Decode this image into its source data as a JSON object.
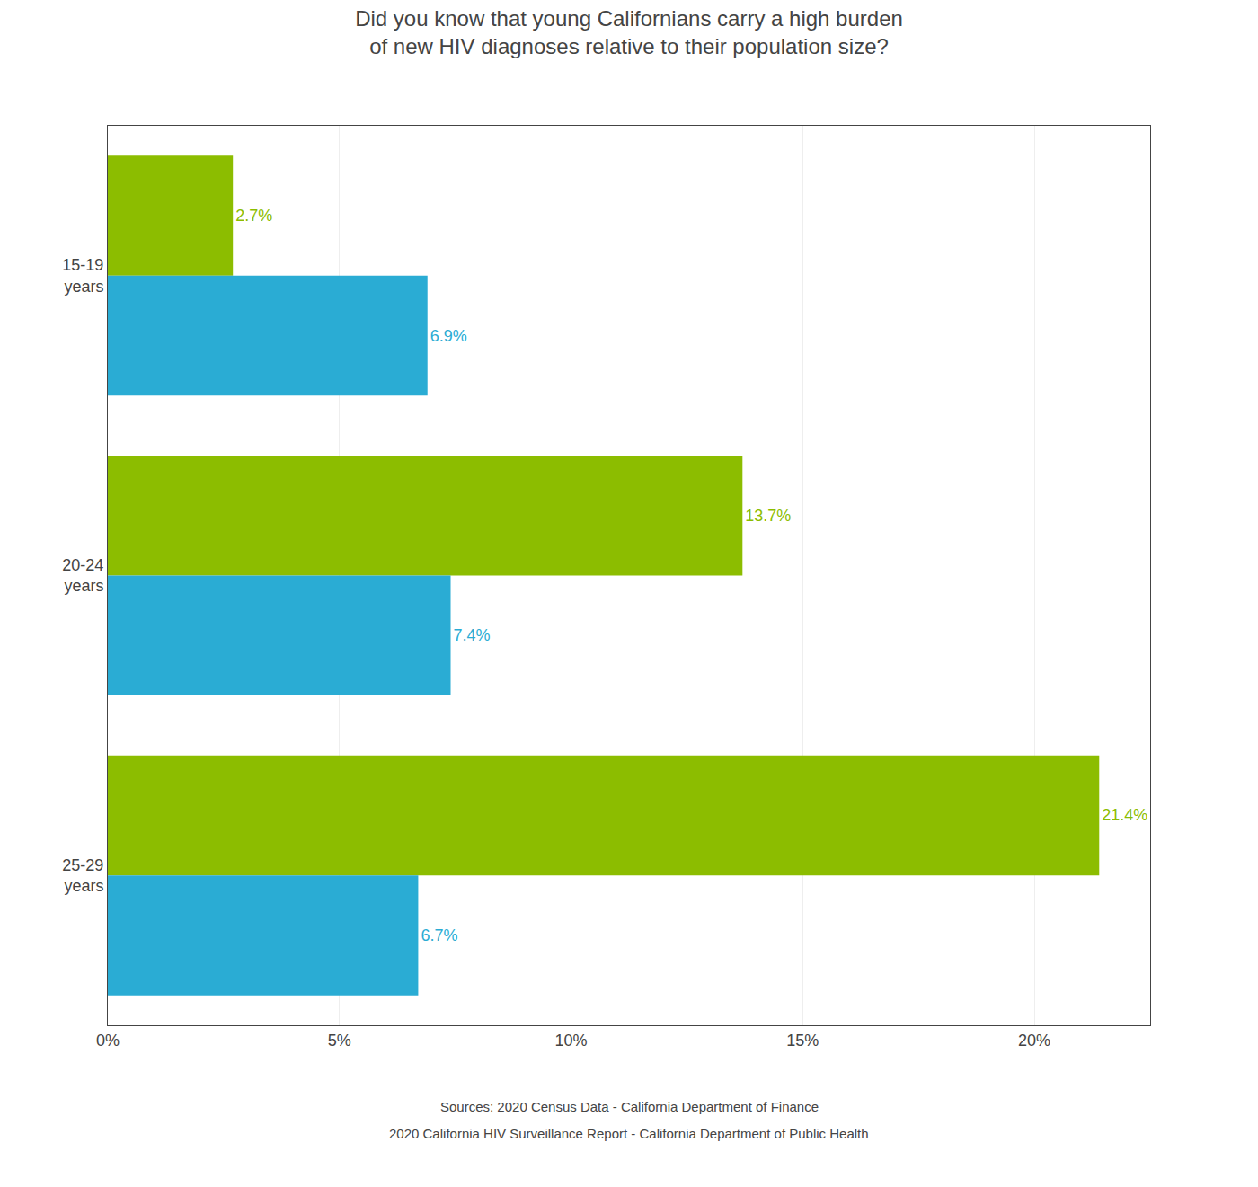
{
  "chart_data": {
    "type": "bar",
    "orientation": "horizontal",
    "title": "Did you know that young Californians carry a high burden\nof new HIV diagnoses relative to their population size?",
    "annotations": [
      "Sources: 2020 Census Data - California Department of Finance",
      "2020 California HIV Surveillance Report - California Department of Public Health"
    ],
    "categories": [
      "15-19\nyears",
      "20-24\nyears",
      "25-29\nyears"
    ],
    "series": [
      {
        "color": "#8cbd00",
        "values": [
          2.7,
          13.7,
          21.4
        ],
        "value_labels": [
          "2.7%",
          "13.7%",
          "21.4%"
        ]
      },
      {
        "color": "#2aacd4",
        "values": [
          6.9,
          7.4,
          6.7
        ],
        "value_labels": [
          "6.9%",
          "7.4%",
          "6.7%"
        ]
      }
    ],
    "data_labels": true,
    "xlim": [
      0,
      22.5
    ],
    "xticks": [
      {
        "value": 0,
        "label": "0%"
      },
      {
        "value": 5,
        "label": "5%"
      },
      {
        "value": 10,
        "label": "10%"
      },
      {
        "value": 15,
        "label": "15%"
      },
      {
        "value": 20,
        "label": "20%"
      }
    ],
    "grid": true
  }
}
